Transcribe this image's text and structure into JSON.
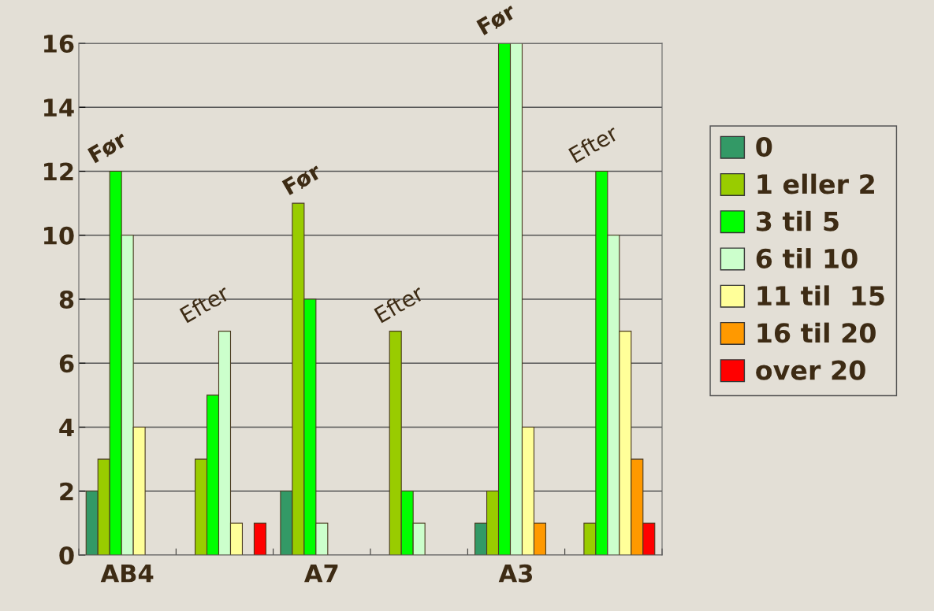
{
  "chart_data": {
    "type": "bar",
    "categories": [
      "AB4",
      null,
      "A7",
      null,
      "A3",
      null
    ],
    "series": [
      {
        "name": "0",
        "color": "#339966",
        "values": [
          2,
          0,
          2,
          0,
          1,
          0
        ]
      },
      {
        "name": "1 eller 2",
        "color": "#99cc00",
        "values": [
          3,
          3,
          11,
          7,
          2,
          1
        ]
      },
      {
        "name": "3 til 5",
        "color": "#00ff00",
        "values": [
          12,
          5,
          8,
          2,
          16,
          12
        ]
      },
      {
        "name": "6 til 10",
        "color": "#ccffcc",
        "values": [
          10,
          7,
          1,
          1,
          16,
          10
        ]
      },
      {
        "name": "11 til  15",
        "color": "#ffff99",
        "values": [
          4,
          1,
          0,
          0,
          4,
          7
        ]
      },
      {
        "name": "16 til 20",
        "color": "#ff9900",
        "values": [
          0,
          0,
          0,
          0,
          1,
          3
        ]
      },
      {
        "name": "over 20",
        "color": "#ff0000",
        "values": [
          0,
          1,
          0,
          0,
          0,
          1
        ]
      }
    ],
    "annotations": [
      "Før",
      "Efter",
      "Før",
      "Efter",
      "Før",
      "Efter"
    ],
    "ylim": [
      0,
      16
    ],
    "yticks": [
      0,
      2,
      4,
      6,
      8,
      10,
      12,
      14,
      16
    ],
    "grid": "y",
    "legend": "right"
  }
}
